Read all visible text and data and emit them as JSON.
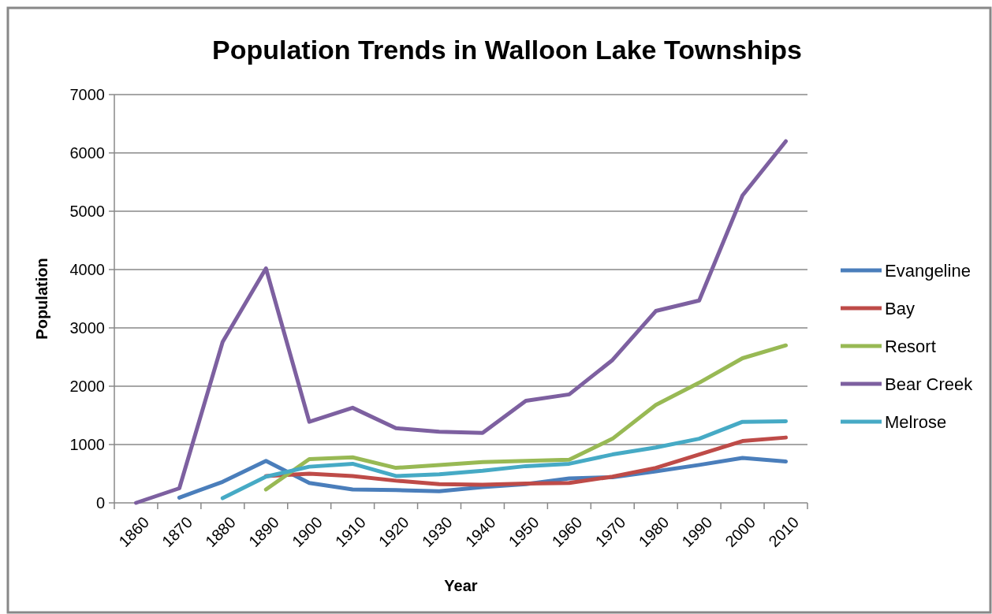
{
  "chart_data": {
    "type": "line",
    "title": "Population Trends in Walloon Lake Townships",
    "xlabel": "Year",
    "ylabel": "Population",
    "categories": [
      "1860",
      "1870",
      "1880",
      "1890",
      "1900",
      "1910",
      "1920",
      "1930",
      "1940",
      "1950",
      "1960",
      "1970",
      "1980",
      "1990",
      "2000",
      "2010"
    ],
    "series": [
      {
        "name": "Evangeline",
        "color": "#4a7ebb",
        "values": [
          null,
          90,
          360,
          720,
          340,
          230,
          220,
          200,
          270,
          320,
          420,
          440,
          540,
          650,
          770,
          710
        ]
      },
      {
        "name": "Bay",
        "color": "#be4b48",
        "values": [
          null,
          null,
          null,
          460,
          500,
          460,
          380,
          320,
          310,
          330,
          340,
          450,
          600,
          830,
          1060,
          1120
        ]
      },
      {
        "name": "Resort",
        "color": "#98b954",
        "values": [
          null,
          null,
          null,
          230,
          750,
          780,
          600,
          650,
          700,
          720,
          740,
          1100,
          1680,
          2060,
          2480,
          2700
        ]
      },
      {
        "name": "Bear Creek",
        "color": "#7d60a0",
        "values": [
          0,
          250,
          2760,
          4020,
          1390,
          1630,
          1280,
          1220,
          1200,
          1750,
          1860,
          2450,
          3290,
          3470,
          5270,
          6200
        ]
      },
      {
        "name": "Melrose",
        "color": "#46aac5",
        "values": [
          null,
          null,
          80,
          450,
          620,
          670,
          460,
          490,
          550,
          630,
          670,
          830,
          950,
          1100,
          1390,
          1400
        ]
      }
    ],
    "ylim": [
      0,
      7000
    ],
    "yticks": [
      0,
      1000,
      2000,
      3000,
      4000,
      5000,
      6000,
      7000
    ],
    "grid": "y",
    "legend": "right",
    "marker": "none",
    "line_style": "solid"
  }
}
